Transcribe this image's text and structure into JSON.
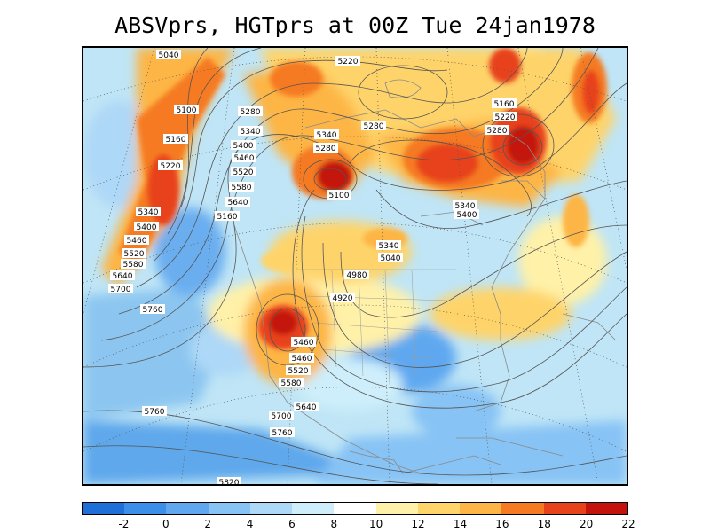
{
  "title": "ABSVprs, HGTprs at 00Z Tue 24jan1978",
  "colorbar": {
    "colors": [
      "#1f6fd8",
      "#3b8fe8",
      "#5fa8f0",
      "#87c3f5",
      "#aed8f7",
      "#cdeefa",
      "#ffffff",
      "#fff1a8",
      "#fed46b",
      "#fdb545",
      "#f57a22",
      "#e8421b",
      "#c4130d"
    ],
    "tick_labels": [
      "-2",
      "0",
      "2",
      "4",
      "6",
      "8",
      "10",
      "12",
      "14",
      "16",
      "18",
      "20",
      "22"
    ]
  },
  "contour_labels": [
    "5040",
    "5100",
    "5160",
    "5220",
    "5340",
    "5400",
    "5460",
    "5520",
    "5580",
    "5640",
    "5700",
    "5760",
    "5280",
    "5340",
    "5400",
    "5460",
    "5520",
    "5580",
    "5640",
    "5160",
    "5220",
    "5100",
    "5280",
    "5340",
    "5280",
    "5340",
    "5040",
    "4980",
    "4920",
    "5160",
    "5220",
    "5280",
    "5340",
    "5400",
    "5460",
    "5460",
    "5520",
    "5580",
    "5640",
    "5700",
    "5760",
    "5760",
    "5820"
  ]
}
